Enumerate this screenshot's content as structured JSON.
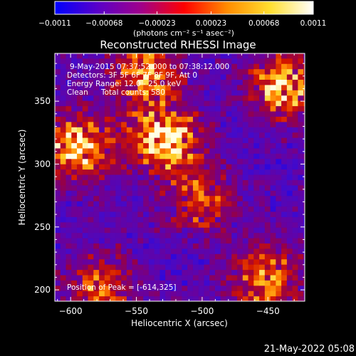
{
  "chart_data": {
    "type": "heatmap",
    "title": "Reconstructed RHESSI Image",
    "xlabel": "Heliocentric X (arcsec)",
    "ylabel": "Heliocentric Y (arcsec)",
    "xlim": [
      -612,
      -422
    ],
    "ylim": [
      191,
      388
    ],
    "x_ticks": [
      -600,
      -550,
      -500,
      -450
    ],
    "x_tick_labels": [
      "−600",
      "−550",
      "−500",
      "−450"
    ],
    "y_ticks": [
      200,
      250,
      300,
      350
    ],
    "y_tick_labels": [
      "200",
      "250",
      "300",
      "350"
    ],
    "colorbar": {
      "min": -0.0011,
      "max": 0.0011,
      "ticks": [
        -0.0011,
        -0.00068,
        -0.00023,
        0.00023,
        0.00068,
        0.0011
      ],
      "tick_labels": [
        "−0.0011",
        "−0.00068",
        "−0.00023",
        "0.00023",
        "0.00068",
        "0.0011"
      ],
      "unit_label": "(photons cm⁻² s⁻¹ asec⁻²)",
      "colors": [
        "#0000ff",
        "#5a00c8",
        "#a0008a",
        "#ff0000",
        "#ff8c00",
        "#ffdf30",
        "#ffffff"
      ]
    },
    "annotations": {
      "time_range": "9-May-2015 07:37:52.000 to 07:38:12.000",
      "detectors": "Detectors: 3F 5F 6F 7F 8F 9F, Att 0",
      "energy_range": "Energy Range: 12.0 - 25.0 keV",
      "clean": "Clean",
      "total_counts": "Total counts: 580",
      "peak": "Position of Peak = [-614,325]"
    },
    "grid": false,
    "bright_regions": [
      {
        "x": -530,
        "y": 318,
        "intensity": 1.0
      },
      {
        "x": -596,
        "y": 312,
        "intensity": 0.95
      },
      {
        "x": -440,
        "y": 360,
        "intensity": 0.9
      },
      {
        "x": -545,
        "y": 368,
        "intensity": 0.75
      },
      {
        "x": -455,
        "y": 207,
        "intensity": 0.75
      },
      {
        "x": -503,
        "y": 270,
        "intensity": 0.55
      },
      {
        "x": -580,
        "y": 200,
        "intensity": 0.6
      }
    ]
  },
  "footer": {
    "date": "21-May-2022 05:08"
  }
}
